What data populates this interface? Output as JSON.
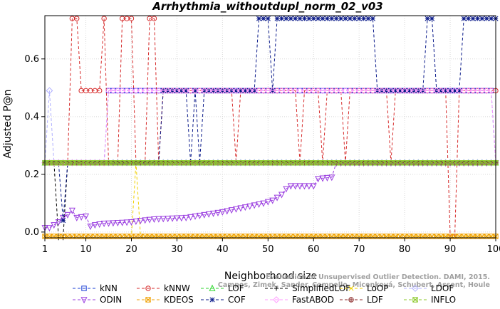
{
  "chart_data": {
    "type": "line",
    "title": "Arrhythmia_withoutdupl_norm_02_v03",
    "xlabel": "Neighborhood size",
    "ylabel": "Adjusted P@n",
    "xlim": [
      1,
      100
    ],
    "ylim": [
      -0.02,
      0.75
    ],
    "xticks": [
      1,
      10,
      20,
      30,
      40,
      50,
      60,
      70,
      80,
      90,
      100
    ],
    "yticks": [
      0.0,
      0.2,
      0.4,
      0.6
    ],
    "ytick_labels": [
      "0.0",
      "0.2",
      "0.4",
      "0.6"
    ],
    "grid": true,
    "legend_position": "bottom",
    "credit": "Campos, Zimek, Sander, Campello, Micenková, Schubert, Assent, Houle",
    "credit_top": "Evaluation of Unsupervised Outlier Detection. DAMI, 2015.",
    "series": [
      {
        "name": "kNN",
        "color": "#1a3fd6",
        "marker": "square",
        "points": [
          [
            1,
            0.24
          ],
          [
            14,
            0.24
          ],
          [
            15,
            0.49
          ],
          [
            99,
            0.49
          ],
          [
            100,
            0.24
          ]
        ]
      },
      {
        "name": "kNNW",
        "color": "#d62a2a",
        "marker": "circle",
        "points": [
          [
            1,
            0.24
          ],
          [
            6,
            0.24
          ],
          [
            7,
            0.74
          ],
          [
            8,
            0.74
          ],
          [
            9,
            0.49
          ],
          [
            13,
            0.49
          ],
          [
            14,
            0.74
          ],
          [
            15,
            0.24
          ],
          [
            17,
            0.24
          ],
          [
            18,
            0.74
          ],
          [
            20,
            0.74
          ],
          [
            21,
            0.24
          ],
          [
            23,
            0.24
          ],
          [
            24,
            0.74
          ],
          [
            25,
            0.74
          ],
          [
            26,
            0.24
          ],
          [
            27,
            0.49
          ],
          [
            42,
            0.49
          ],
          [
            43,
            0.24
          ],
          [
            44,
            0.49
          ],
          [
            56,
            0.49
          ],
          [
            57,
            0.24
          ],
          [
            58,
            0.49
          ],
          [
            61,
            0.49
          ],
          [
            62,
            0.24
          ],
          [
            63,
            0.49
          ],
          [
            66,
            0.49
          ],
          [
            67,
            0.24
          ],
          [
            68,
            0.49
          ],
          [
            76,
            0.49
          ],
          [
            77,
            0.24
          ],
          [
            78,
            0.49
          ],
          [
            89,
            0.49
          ],
          [
            90,
            -0.015
          ],
          [
            91,
            -0.015
          ],
          [
            92,
            0.49
          ],
          [
            100,
            0.49
          ]
        ]
      },
      {
        "name": "LOF",
        "color": "#2bd62b",
        "marker": "triangle-up",
        "points": [
          [
            1,
            0.24
          ],
          [
            100,
            0.24
          ]
        ]
      },
      {
        "name": "SimplifiedLOF",
        "color": "#000000",
        "marker": "plus",
        "points": [
          [
            1,
            0.24
          ],
          [
            3,
            0.24
          ],
          [
            4,
            -0.02
          ],
          [
            5,
            -0.02
          ],
          [
            6,
            0.24
          ],
          [
            100,
            0.24
          ]
        ]
      },
      {
        "name": "LoOP",
        "color": "#f0d000",
        "marker": "x",
        "points": [
          [
            1,
            -0.015
          ],
          [
            20,
            -0.015
          ],
          [
            21,
            0.24
          ],
          [
            22,
            -0.015
          ],
          [
            100,
            -0.015
          ]
        ]
      },
      {
        "name": "LDOF",
        "color": "#b0b0ff",
        "marker": "diamond",
        "points": [
          [
            1,
            0.24
          ],
          [
            2,
            0.49
          ],
          [
            3,
            0.24
          ],
          [
            100,
            0.24
          ]
        ]
      },
      {
        "name": "ODIN",
        "color": "#9b3fe0",
        "marker": "triangle-down",
        "points": [
          [
            1,
            0.015
          ],
          [
            2,
            0.015
          ],
          [
            3,
            0.025
          ],
          [
            4,
            0.035
          ],
          [
            5,
            0.05
          ],
          [
            6,
            0.06
          ],
          [
            7,
            0.075
          ],
          [
            8,
            0.05
          ],
          [
            10,
            0.055
          ],
          [
            11,
            0.02
          ],
          [
            12,
            0.025
          ],
          [
            14,
            0.03
          ],
          [
            20,
            0.035
          ],
          [
            22,
            0.04
          ],
          [
            25,
            0.045
          ],
          [
            32,
            0.05
          ],
          [
            36,
            0.06
          ],
          [
            40,
            0.07
          ],
          [
            43,
            0.08
          ],
          [
            46,
            0.09
          ],
          [
            49,
            0.1
          ],
          [
            51,
            0.11
          ],
          [
            53,
            0.13
          ],
          [
            54,
            0.15
          ],
          [
            55,
            0.16
          ],
          [
            60,
            0.16
          ],
          [
            61,
            0.185
          ],
          [
            64,
            0.19
          ],
          [
            65,
            0.24
          ],
          [
            100,
            0.24
          ]
        ]
      },
      {
        "name": "KDEOS",
        "color": "#f0a000",
        "marker": "square-x",
        "points": [
          [
            1,
            -0.015
          ],
          [
            100,
            -0.015
          ]
        ]
      },
      {
        "name": "COF",
        "color": "#0a1a8a",
        "marker": "asterisk",
        "points": [
          [
            1,
            0.24
          ],
          [
            4,
            0.24
          ],
          [
            5,
            0.04
          ],
          [
            6,
            0.24
          ],
          [
            26,
            0.24
          ],
          [
            27,
            0.49
          ],
          [
            32,
            0.49
          ],
          [
            33,
            0.24
          ],
          [
            34,
            0.49
          ],
          [
            35,
            0.24
          ],
          [
            36,
            0.49
          ],
          [
            47,
            0.49
          ],
          [
            48,
            0.74
          ],
          [
            50,
            0.74
          ],
          [
            51,
            0.49
          ],
          [
            52,
            0.74
          ],
          [
            73,
            0.74
          ],
          [
            74,
            0.49
          ],
          [
            84,
            0.49
          ],
          [
            85,
            0.74
          ],
          [
            86,
            0.74
          ],
          [
            87,
            0.49
          ],
          [
            92,
            0.49
          ],
          [
            93,
            0.74
          ],
          [
            100,
            0.74
          ]
        ]
      },
      {
        "name": "FastABOD",
        "color": "#ff9bff",
        "marker": "diamond",
        "points": [
          [
            1,
            0.24
          ],
          [
            14,
            0.24
          ],
          [
            15,
            0.49
          ],
          [
            99,
            0.49
          ],
          [
            100,
            0.24
          ]
        ]
      },
      {
        "name": "LDF",
        "color": "#8b2a2a",
        "marker": "circle-plus",
        "points": [
          [
            1,
            0.24
          ],
          [
            42,
            0.24
          ],
          [
            43,
            0.24
          ],
          [
            100,
            0.24
          ]
        ]
      },
      {
        "name": "INFLO",
        "color": "#8bc82a",
        "marker": "square-x",
        "points": [
          [
            1,
            0.24
          ],
          [
            100,
            0.24
          ]
        ]
      }
    ]
  }
}
